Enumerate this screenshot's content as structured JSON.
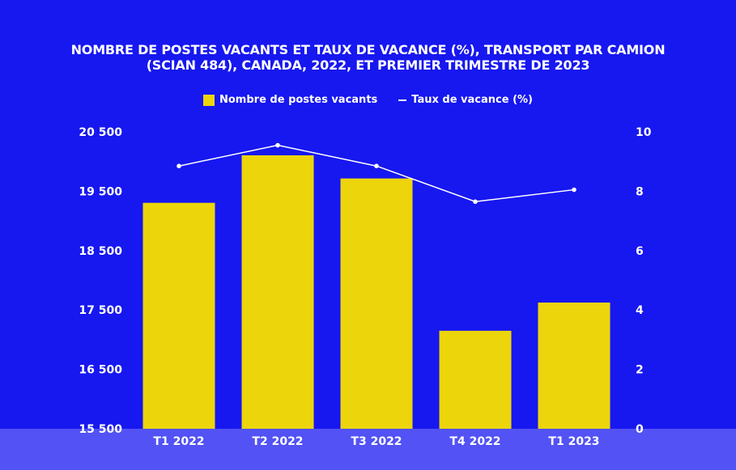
{
  "chart_data": {
    "type": "bar",
    "title": "NOMBRE DE POSTES VACANTS ET TAUX DE VACANCE (%), TRANSPORT PAR CAMION (SCIAN 484), CANADA, 2022, ET PREMIER TRIMESTRE DE 2023",
    "categories": [
      "T1 2022",
      "T2 2022",
      "T3 2022",
      "T4 2022",
      "T1 2023"
    ],
    "series": [
      {
        "name": "Nombre de postes vacants",
        "type": "bar",
        "axis": "left",
        "color": "#ecd50b",
        "values": [
          19305,
          20105,
          19715,
          17150,
          17625
        ]
      },
      {
        "name": "Taux de vacance (%)",
        "type": "line",
        "axis": "right",
        "color": "#ffffff",
        "values": [
          8.85,
          9.55,
          8.85,
          7.65,
          8.05
        ]
      }
    ],
    "y_left": {
      "ylim": [
        15500,
        20500
      ],
      "ticks": [
        15500,
        16500,
        17500,
        18500,
        19500,
        20500
      ],
      "tick_labels": [
        "15 500",
        "16 500",
        "17 500",
        "18 500",
        "19 500",
        "20 500"
      ]
    },
    "y_right": {
      "ylim": [
        0,
        10
      ],
      "ticks": [
        0,
        2,
        4,
        6,
        8,
        10
      ],
      "tick_labels": [
        "0",
        "2",
        "4",
        "6",
        "8",
        "10"
      ]
    },
    "grid": false,
    "legend_position": "top-center",
    "colors": {
      "background": "#1717f0",
      "axis_band": "#5252f5",
      "bar": "#ecd50b",
      "line": "#ffffff"
    }
  }
}
